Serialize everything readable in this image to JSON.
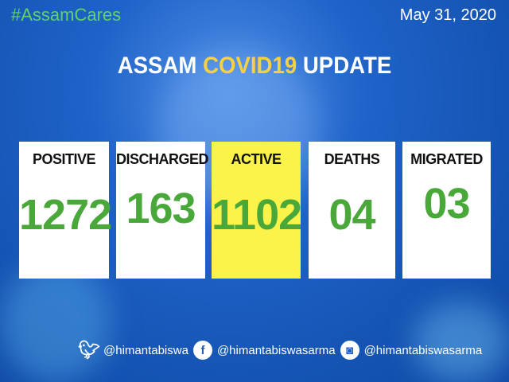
{
  "hashtag": "#AssamCares",
  "date": "May 31, 2020",
  "title": {
    "part1": "ASSAM ",
    "highlight": "COVID19",
    "part2": " UPDATE"
  },
  "cards": [
    {
      "label": "POSITIVE",
      "value": "1272"
    },
    {
      "label": "DISCHARGED",
      "value": "163"
    },
    {
      "label": "ACTIVE",
      "value": "1102"
    },
    {
      "label": "DEATHS",
      "value": "04"
    },
    {
      "label": "MIGRATED",
      "value": "03"
    }
  ],
  "social": {
    "twitter": "@himantabiswa",
    "facebook": "@himantabiswasarma",
    "instagram": "@himantabiswasarma"
  },
  "colors": {
    "number": "#4aa83a",
    "highlight": "#f5d142",
    "active_card": "#fbf24a",
    "hashtag": "#5fd26a"
  }
}
